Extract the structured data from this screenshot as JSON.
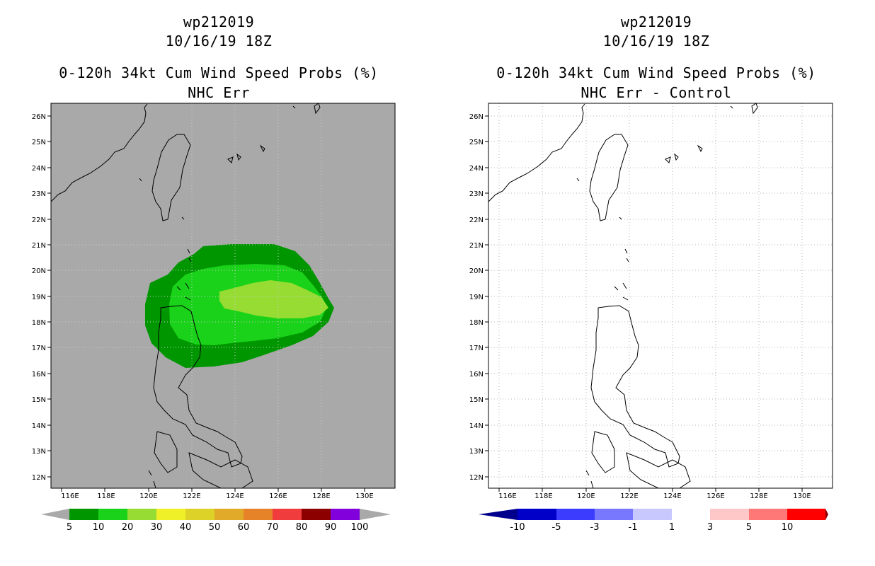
{
  "storm_id": "wp212019",
  "datetime": "10/16/19 18Z",
  "product_title": "0-120h 34kt Cum Wind Speed Probs (%)",
  "left_panel": {
    "subtitle": "NHC Err",
    "background": "#a9a9a9",
    "colorbar": {
      "colors": [
        "#009600",
        "#19d219",
        "#96dc32",
        "#f0f028",
        "#dcd228",
        "#e1aa28",
        "#e68228",
        "#f03c3c",
        "#8c0000",
        "#8200dc"
      ],
      "labels": [
        "5",
        "10",
        "20",
        "30",
        "40",
        "50",
        "60",
        "70",
        "80",
        "90",
        "100"
      ],
      "end_arrow_color": "#a9a9a9"
    },
    "probability_levels": [
      "5",
      "10",
      "20"
    ]
  },
  "right_panel": {
    "subtitle": "NHC Err - Control",
    "background": "#ffffff",
    "colorbar": {
      "colors": [
        "#0000c8",
        "#3c3cff",
        "#7878ff",
        "#c8c8ff",
        "#ffffff",
        "#ffc8c8",
        "#ff7878",
        "#ff0000"
      ],
      "labels": [
        "-10",
        "-5",
        "-3",
        "-1",
        "1",
        "3",
        "5",
        "10"
      ],
      "left_arrow_color": "#00008c",
      "right_arrow_color": "#8c0000"
    }
  },
  "axes": {
    "lon_labels": [
      "116E",
      "118E",
      "120E",
      "122E",
      "124E",
      "126E",
      "128E",
      "130E"
    ],
    "lat_labels": [
      "12N",
      "13N",
      "14N",
      "15N",
      "16N",
      "17N",
      "18N",
      "19N",
      "20N",
      "21N",
      "22N",
      "23N",
      "24N",
      "25N",
      "26N"
    ],
    "lon_range": [
      115.5,
      131.5
    ],
    "lat_range": [
      11.6,
      26.5
    ]
  }
}
